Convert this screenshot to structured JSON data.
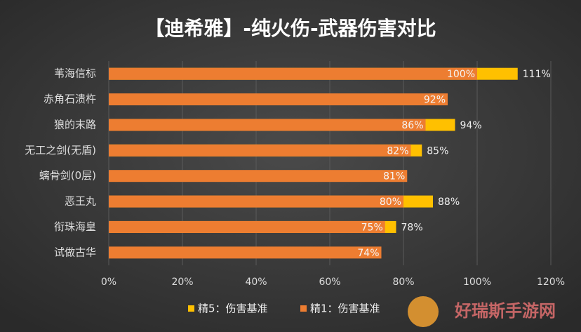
{
  "chart_data": {
    "type": "bar",
    "orientation": "horizontal",
    "title": "【迪希雅】-纯火伤-武器伤害对比",
    "categories": [
      "苇海信标",
      "赤角石溃杵",
      "狼的末路",
      "无工之剑(无盾)",
      "螭骨剑(0层)",
      "恶王丸",
      "衔珠海皇",
      "试做古华"
    ],
    "series": [
      {
        "name": "精5：伤害基准",
        "color": "#ffc000",
        "values": [
          111,
          null,
          94,
          85,
          null,
          88,
          78,
          null
        ],
        "value_labels": [
          "111%",
          null,
          "94%",
          "85%",
          null,
          "88%",
          "78%",
          null
        ]
      },
      {
        "name": "精1：伤害基准",
        "color": "#ed7d31",
        "values": [
          100,
          92,
          86,
          82,
          81,
          80,
          75,
          74
        ],
        "value_labels": [
          "100%",
          "92%",
          "86%",
          "82%",
          "81%",
          "80%",
          "75%",
          "74%"
        ]
      }
    ],
    "xlim": [
      0,
      120
    ],
    "xticks": [
      {
        "value": 0,
        "label": "0%"
      },
      {
        "value": 20,
        "label": "20%"
      },
      {
        "value": 40,
        "label": "40%"
      },
      {
        "value": 60,
        "label": "60%"
      },
      {
        "value": 80,
        "label": "80%"
      },
      {
        "value": 100,
        "label": "100%"
      },
      {
        "value": 120,
        "label": "120%"
      }
    ],
    "grid": true,
    "legend": "bottom",
    "watermark": "好瑞斯手游网"
  }
}
